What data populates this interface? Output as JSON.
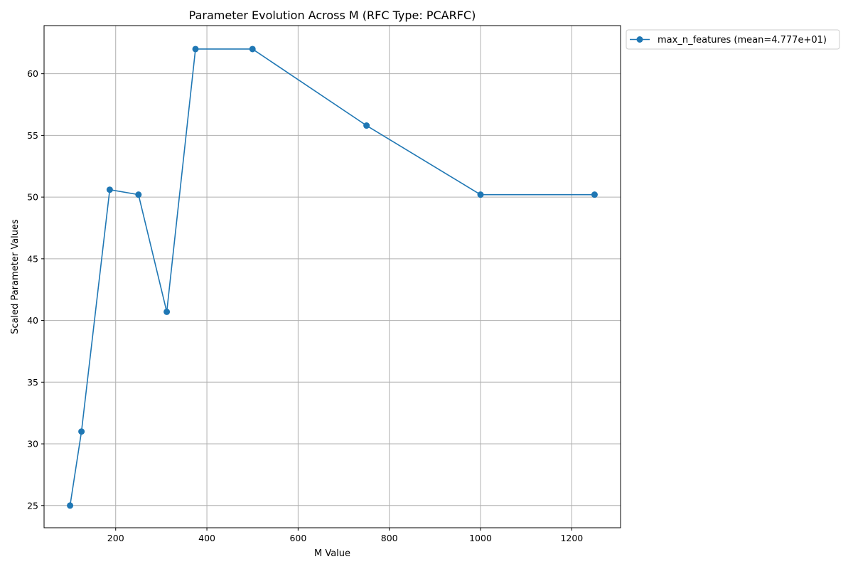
{
  "chart_data": {
    "type": "line",
    "title": "Parameter Evolution Across M (RFC Type: PCARFC)",
    "xlabel": "M Value",
    "ylabel": "Scaled Parameter Values",
    "xlim": [
      43,
      1307
    ],
    "ylim": [
      23.2,
      63.9
    ],
    "xticks": [
      200,
      400,
      600,
      800,
      1000,
      1200
    ],
    "yticks": [
      25,
      30,
      35,
      40,
      45,
      50,
      55,
      60
    ],
    "grid": true,
    "legend_position": "outside-top-right",
    "series": [
      {
        "name": "max_n_features (mean=4.777e+01)",
        "color": "#1f77b4",
        "marker": "circle",
        "x": [
          100,
          125,
          187,
          250,
          312,
          375,
          500,
          750,
          1000,
          1250
        ],
        "y": [
          25.0,
          31.0,
          50.6,
          50.2,
          40.7,
          62.0,
          62.0,
          55.8,
          50.2,
          50.2
        ]
      }
    ]
  }
}
